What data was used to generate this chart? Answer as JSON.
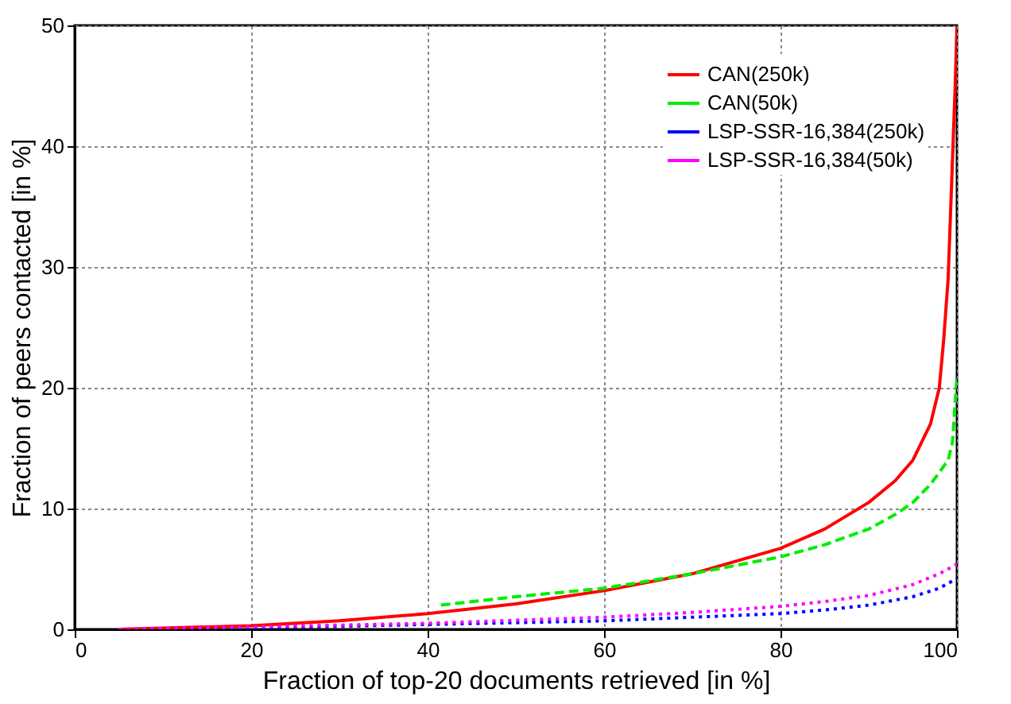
{
  "chart_data": {
    "type": "line",
    "xlabel": "Fraction of top-20 documents retrieved [in %]",
    "ylabel": "Fraction of peers contacted [in %]",
    "xlim": [
      0,
      100
    ],
    "xticks": [
      0,
      20,
      40,
      60,
      80,
      100
    ],
    "ylim": [
      0,
      50
    ],
    "yticks": [
      0,
      10,
      20,
      30,
      40,
      50
    ],
    "grid": true,
    "legend": "top right",
    "marker": "none",
    "series": [
      {
        "name": "CAN(250k)",
        "color": "#ff0000",
        "line_style": "solid",
        "x": [
          5,
          10,
          20,
          30,
          40,
          50,
          60,
          70,
          80,
          85,
          90,
          93,
          95,
          97,
          98,
          98.5,
          99,
          99.3,
          99.6,
          99.8,
          100
        ],
        "values": [
          0,
          0.1,
          0.3,
          0.7,
          1.3,
          2.1,
          3.2,
          4.6,
          6.7,
          8.3,
          10.5,
          12.3,
          14,
          17,
          20,
          24,
          29,
          35,
          41,
          45,
          50
        ]
      },
      {
        "name": "CAN(50k)",
        "color": "#00ee00",
        "line_style": "dashed",
        "x": [
          41.5,
          50,
          60,
          70,
          80,
          85,
          90,
          93,
          95,
          97,
          98,
          99,
          99.5,
          100
        ],
        "values": [
          2.0,
          2.7,
          3.4,
          4.6,
          6.0,
          7.0,
          8.3,
          9.5,
          10.5,
          12,
          13,
          14,
          15.5,
          21
        ]
      },
      {
        "name": "LSP-SSR-16,384(250k)",
        "color": "#0000ff",
        "line_style": "dotted",
        "x": [
          5,
          20,
          40,
          60,
          70,
          80,
          85,
          90,
          95,
          98,
          100
        ],
        "values": [
          0,
          0.1,
          0.4,
          0.7,
          1.0,
          1.3,
          1.6,
          2.0,
          2.7,
          3.4,
          4.2
        ]
      },
      {
        "name": "LSP-SSR-16,384(50k)",
        "color": "#ff00ff",
        "line_style": "dotted",
        "x": [
          5,
          20,
          40,
          60,
          70,
          80,
          85,
          90,
          95,
          98,
          100
        ],
        "values": [
          0,
          0.2,
          0.5,
          1.0,
          1.4,
          1.9,
          2.3,
          2.8,
          3.7,
          4.6,
          5.4
        ]
      }
    ]
  }
}
